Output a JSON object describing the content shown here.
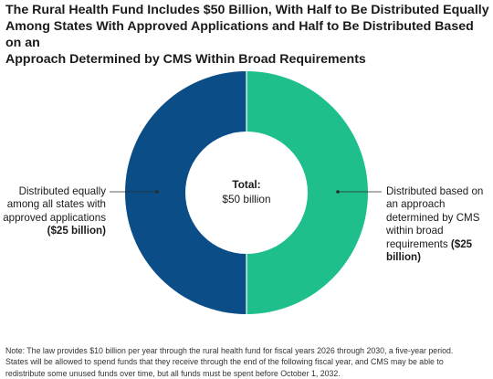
{
  "title_lines": [
    "The Rural Health Fund Includes $50 Billion, With Half to Be Distributed Equally",
    "Among States With Approved Applications and Half to Be Distributed Based on an",
    "Approach Determined by CMS Within Broad Requirements"
  ],
  "chart_data": {
    "type": "pie",
    "donut": true,
    "title": "The Rural Health Fund Includes $50 Billion, With Half to Be Distributed Equally Among States With Approved Applications and Half to Be Distributed Based on an Approach Determined by CMS Within Broad Requirements",
    "center_label": {
      "title": "Total:",
      "value": "$50 billion"
    },
    "slices": [
      {
        "label_lines": [
          "Distributed based on",
          "an approach",
          "determined by CMS",
          "within broad",
          "requirements"
        ],
        "value_label": "($25 billion)",
        "value": 25,
        "color": "#1ebf8c"
      },
      {
        "label_lines": [
          "Distributed equally",
          "among all states with",
          "approved applications"
        ],
        "value_label": "($25 billion)",
        "value": 25,
        "color": "#0b4d87"
      }
    ],
    "units": "billion dollars"
  },
  "note_lines": [
    "Note: The law provides $10 billion per year through the rural health fund for fiscal years 2026 through 2030, a five-year period.",
    "States will be allowed to spend funds that they receive through the end of the following fiscal year, and CMS may be able to",
    "redistribute some unused funds over time, but all funds must be spent before October 1, 2032."
  ],
  "colors": {
    "leader_line": "#2b2b2b"
  }
}
